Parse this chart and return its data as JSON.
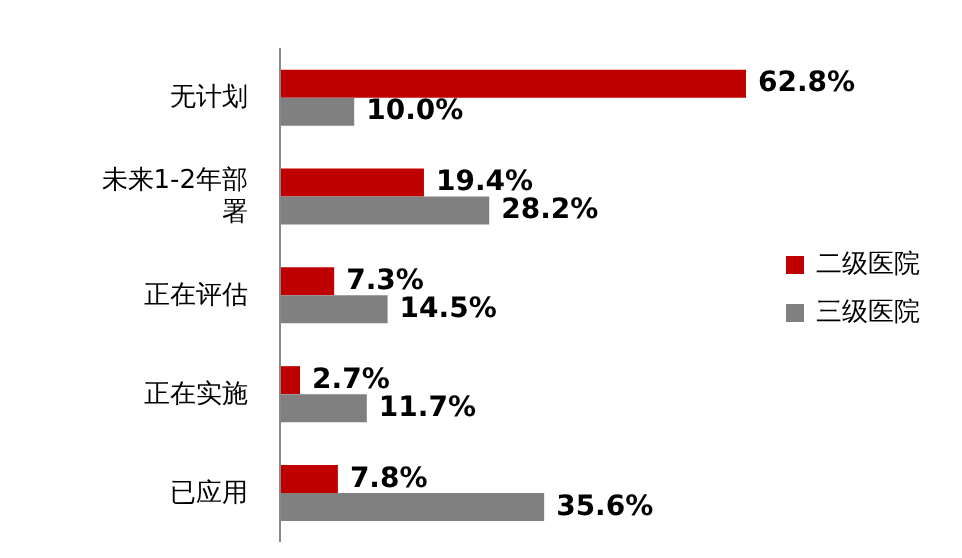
{
  "chart_data": {
    "type": "bar",
    "orientation": "horizontal",
    "categories": [
      "无计划",
      "未来1-2年部署",
      "正在评估",
      "正在实施",
      "已应用"
    ],
    "series": [
      {
        "name": "二级医院",
        "color": "#c00000",
        "values": [
          62.8,
          19.4,
          7.3,
          2.7,
          7.8
        ],
        "value_labels": [
          "62.8%",
          "19.4%",
          "7.3%",
          "2.7%",
          "7.8%"
        ]
      },
      {
        "name": "三级医院",
        "color": "#808080",
        "values": [
          10.0,
          28.2,
          14.5,
          11.7,
          35.6
        ],
        "value_labels": [
          "10.0%",
          "28.2%",
          "14.5%",
          "11.7%",
          "35.6%"
        ]
      }
    ],
    "legend": "right",
    "tick_labels": "y"
  }
}
